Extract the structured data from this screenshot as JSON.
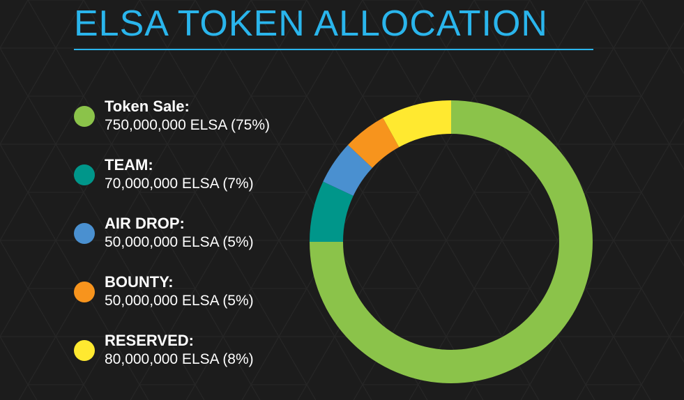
{
  "title": "ELSA TOKEN ALLOCATION",
  "colors": {
    "title": "#2ab5ec",
    "background": "#1c1c1c",
    "token_sale": "#8bc34a",
    "team": "#00968a",
    "air_drop": "#4a90d0",
    "bounty": "#f7941d",
    "reserved": "#ffe930"
  },
  "legend": [
    {
      "name": "Token Sale:",
      "value": "750,000,000 ELSA (75%)"
    },
    {
      "name": "TEAM:",
      "value": "70,000,000 ELSA (7%)"
    },
    {
      "name": "AIR DROP:",
      "value": "50,000,000 ELSA (5%)"
    },
    {
      "name": "BOUNTY:",
      "value": "50,000,000 ELSA (5%)"
    },
    {
      "name": "RESERVED:",
      "value": "80,000,000 ELSA (8%)"
    }
  ],
  "chart_data": {
    "type": "pie",
    "donut": true,
    "categories": [
      "Token Sale",
      "TEAM",
      "AIR DROP",
      "BOUNTY",
      "RESERVED"
    ],
    "values": [
      75,
      7,
      5,
      5,
      8
    ],
    "colors": [
      "#8bc34a",
      "#00968a",
      "#4a90d0",
      "#f7941d",
      "#ffe930"
    ]
  }
}
